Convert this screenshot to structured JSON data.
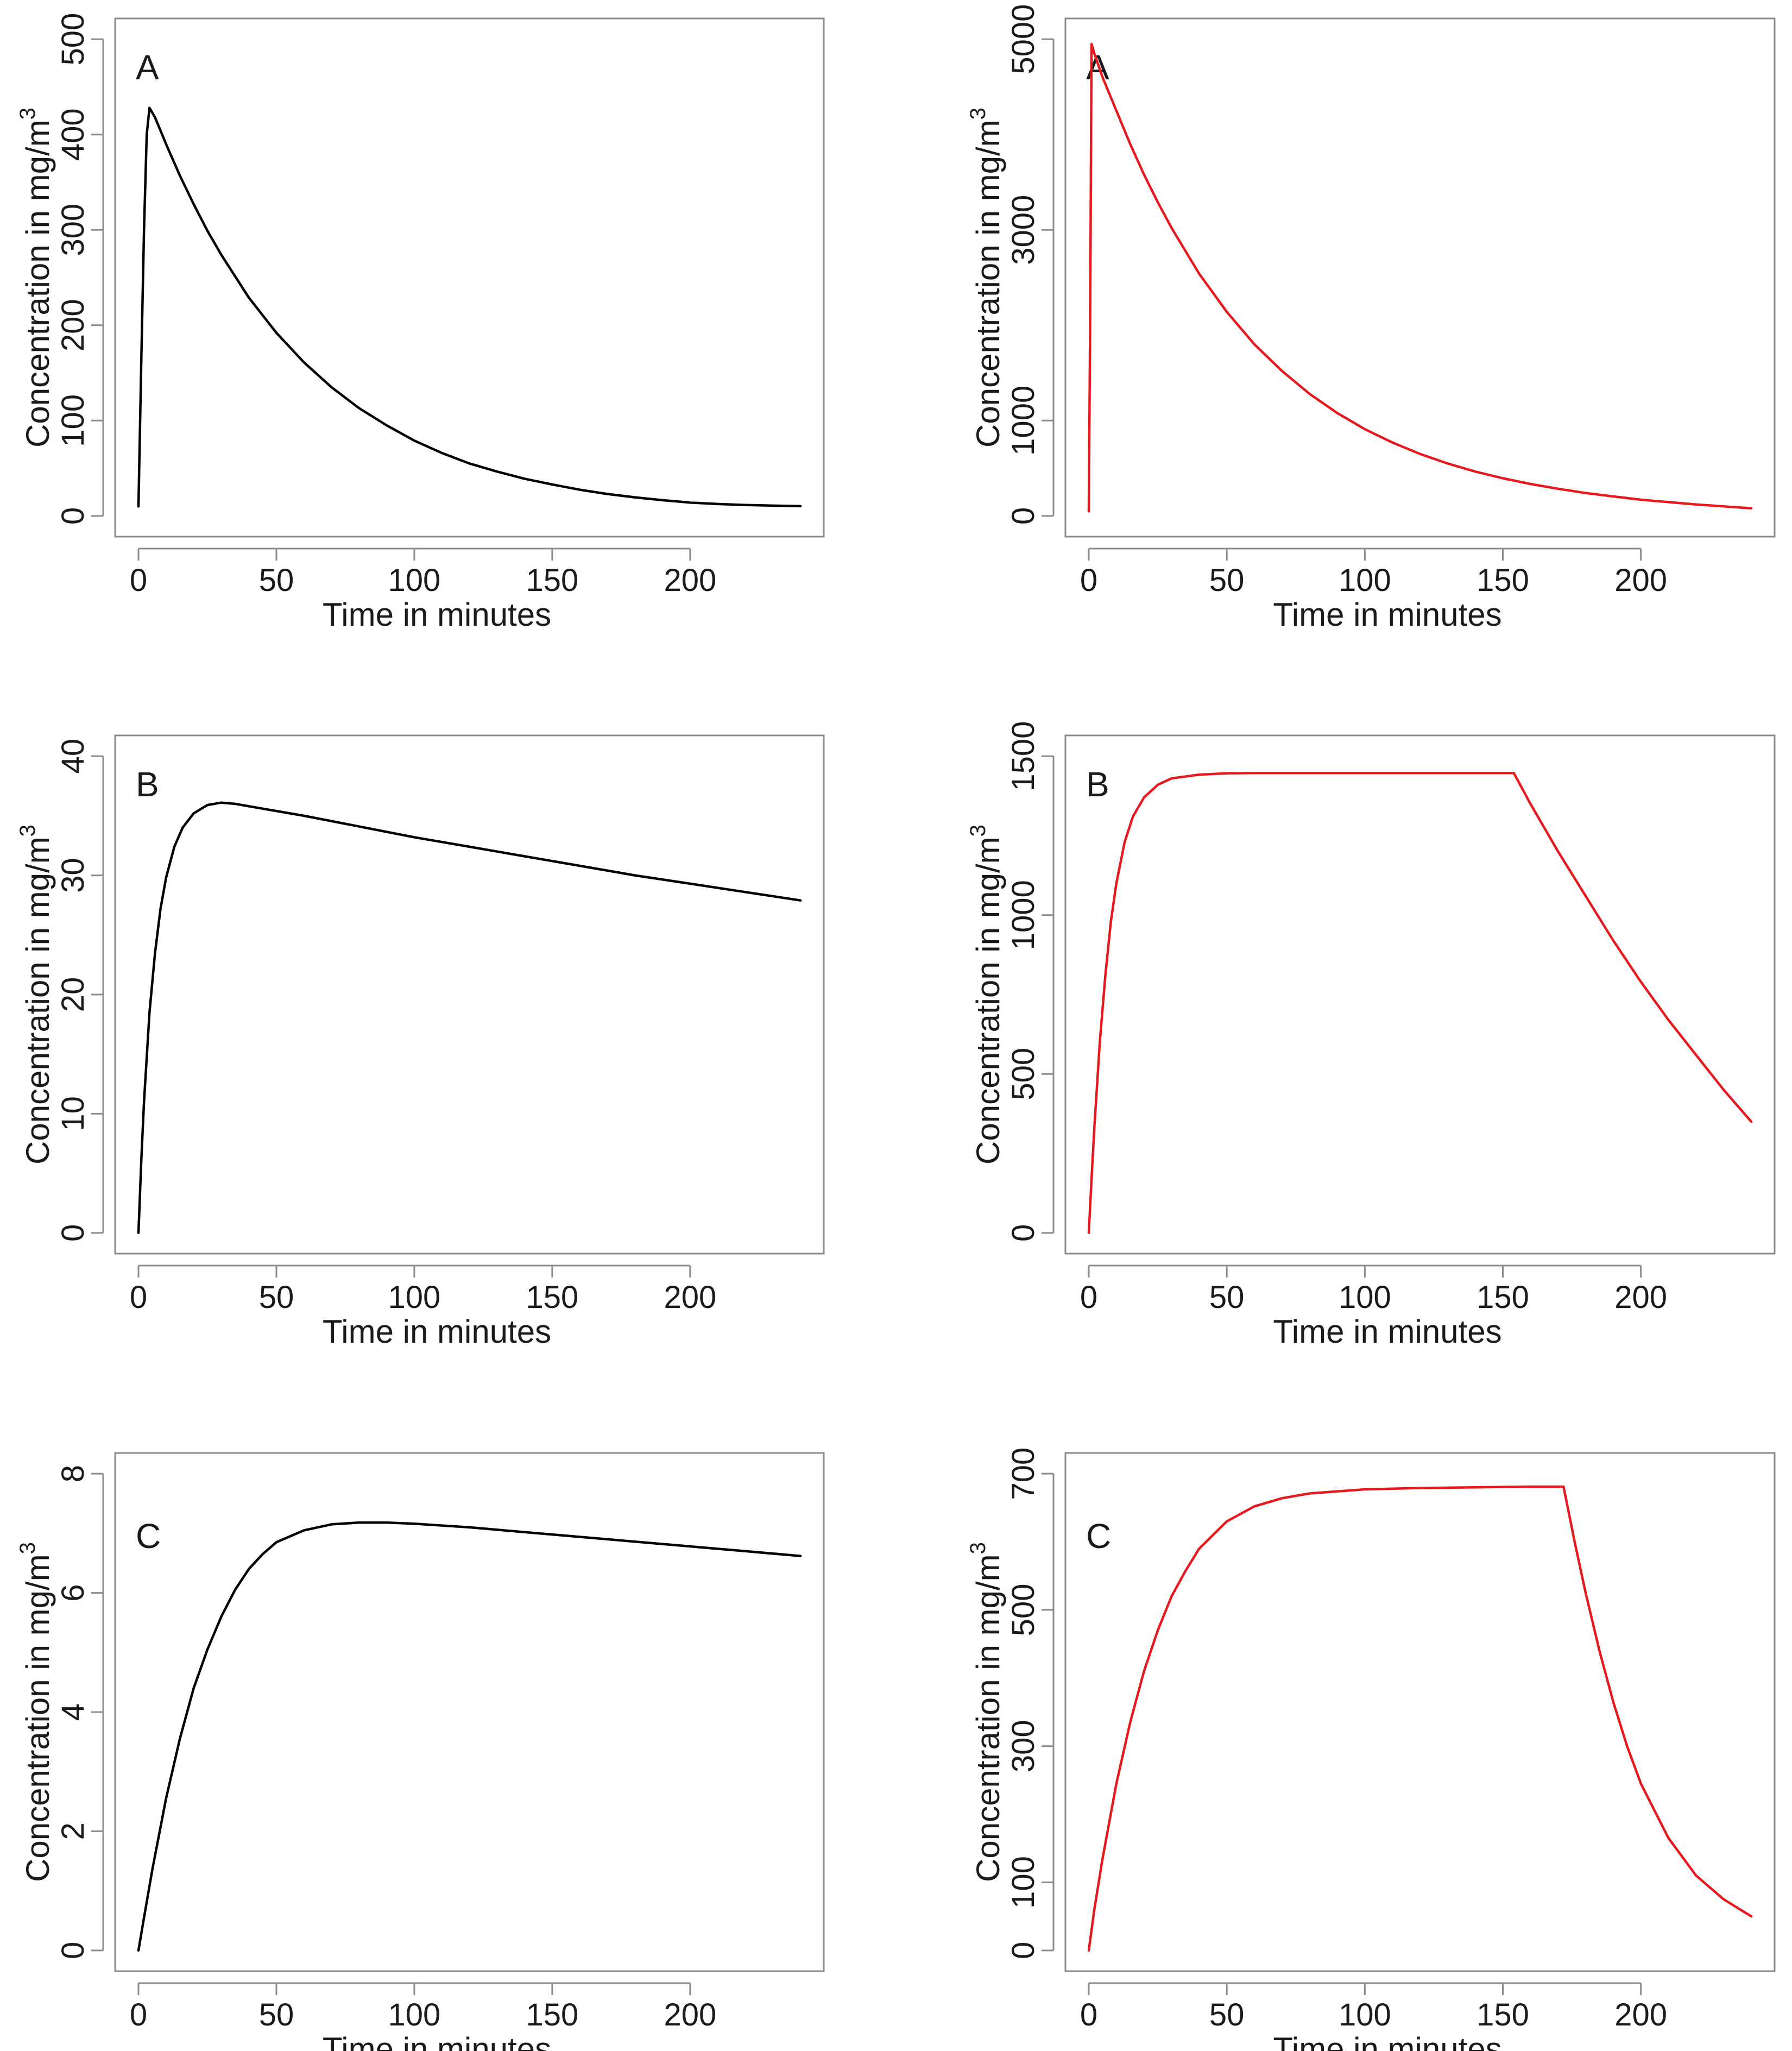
{
  "chart_data": [
    {
      "type": "line",
      "panel": "A",
      "column": "left",
      "xlabel": "Time in minutes",
      "ylabel": "Concentration in mg/m",
      "ylabel_superscript": "3",
      "xlim": [
        0,
        240
      ],
      "ylim": [
        0,
        500
      ],
      "xticks": [
        0,
        50,
        100,
        150,
        200
      ],
      "yticks": [
        0,
        100,
        200,
        300,
        400,
        500
      ],
      "color": "#000000",
      "series": [
        {
          "name": "A",
          "x": [
            0,
            1,
            2,
            3,
            4,
            6,
            10,
            15,
            20,
            25,
            30,
            40,
            50,
            60,
            70,
            80,
            90,
            100,
            110,
            120,
            130,
            140,
            150,
            160,
            170,
            180,
            190,
            200,
            210,
            220,
            230,
            240
          ],
          "y": [
            10,
            160,
            300,
            400,
            428,
            418,
            390,
            357,
            327,
            299,
            274,
            229,
            192,
            161,
            135,
            113,
            95,
            79,
            66,
            55,
            46.5,
            39,
            33,
            27.5,
            23,
            19.5,
            16.5,
            14,
            12.5,
            11.5,
            10.8,
            10.2
          ]
        }
      ]
    },
    {
      "type": "line",
      "panel": "A",
      "column": "right",
      "xlabel": "Time in minutes",
      "ylabel": "Concentration in mg/m",
      "ylabel_superscript": "3",
      "xlim": [
        0,
        240
      ],
      "ylim": [
        0,
        5000
      ],
      "xticks": [
        0,
        50,
        100,
        150,
        200
      ],
      "yticks": [
        0,
        1000,
        3000,
        5000
      ],
      "color": "#e8191e",
      "series": [
        {
          "name": "A",
          "x": [
            0,
            0.5,
            1,
            2,
            5,
            10,
            15,
            20,
            25,
            30,
            40,
            50,
            60,
            70,
            80,
            90,
            100,
            110,
            120,
            130,
            140,
            150,
            160,
            170,
            180,
            190,
            200,
            210,
            220,
            230,
            240
          ],
          "y": [
            50,
            2000,
            4950,
            4850,
            4600,
            4250,
            3900,
            3580,
            3290,
            3020,
            2540,
            2140,
            1800,
            1520,
            1280,
            1080,
            910,
            770,
            650,
            550,
            465,
            395,
            335,
            285,
            240,
            205,
            170,
            145,
            120,
            100,
            80
          ]
        }
      ]
    },
    {
      "type": "line",
      "panel": "B",
      "column": "left",
      "xlabel": "Time in minutes",
      "ylabel": "Concentration in mg/m",
      "ylabel_superscript": "3",
      "xlim": [
        0,
        240
      ],
      "ylim": [
        0,
        40
      ],
      "xticks": [
        0,
        50,
        100,
        150,
        200
      ],
      "yticks": [
        0,
        10,
        20,
        30,
        40
      ],
      "color": "#000000",
      "series": [
        {
          "name": "B",
          "x": [
            0,
            1,
            2,
            4,
            6,
            8,
            10,
            13,
            16,
            20,
            25,
            30,
            35,
            40,
            50,
            60,
            80,
            100,
            120,
            140,
            160,
            180,
            200,
            220,
            240
          ],
          "y": [
            0,
            6,
            11,
            18.5,
            23.5,
            27.2,
            29.8,
            32.4,
            34.0,
            35.2,
            35.9,
            36.1,
            36.0,
            35.8,
            35.4,
            35.0,
            34.1,
            33.2,
            32.4,
            31.6,
            30.8,
            30.0,
            29.3,
            28.6,
            27.9
          ]
        }
      ]
    },
    {
      "type": "line",
      "panel": "B",
      "column": "right",
      "xlabel": "Time in minutes",
      "ylabel": "Concentration in mg/m",
      "ylabel_superscript": "3",
      "xlim": [
        0,
        240
      ],
      "ylim": [
        0,
        1500
      ],
      "xticks": [
        0,
        50,
        100,
        150,
        200
      ],
      "yticks": [
        0,
        500,
        1000,
        1500
      ],
      "color": "#e8191e",
      "series": [
        {
          "name": "B",
          "x": [
            0,
            1,
            2,
            4,
            6,
            8,
            10,
            13,
            16,
            20,
            25,
            30,
            40,
            50,
            60,
            80,
            100,
            120,
            140,
            154,
            160,
            170,
            180,
            190,
            200,
            210,
            220,
            230,
            240
          ],
          "y": [
            0,
            170,
            330,
            600,
            810,
            980,
            1100,
            1230,
            1310,
            1370,
            1410,
            1430,
            1442,
            1446,
            1447,
            1447,
            1447,
            1447,
            1447,
            1447,
            1350,
            1200,
            1060,
            920,
            790,
            670,
            560,
            450,
            350
          ]
        }
      ]
    },
    {
      "type": "line",
      "panel": "C",
      "column": "left",
      "xlabel": "Time in minutes",
      "ylabel": "Concentration in mg/m",
      "ylabel_superscript": "3",
      "xlim": [
        0,
        240
      ],
      "ylim": [
        0,
        8
      ],
      "xticks": [
        0,
        50,
        100,
        150,
        200
      ],
      "yticks": [
        0,
        2,
        4,
        6,
        8
      ],
      "color": "#000000",
      "series": [
        {
          "name": "C",
          "x": [
            0,
            2,
            5,
            10,
            15,
            20,
            25,
            30,
            35,
            40,
            45,
            50,
            60,
            70,
            80,
            90,
            100,
            120,
            140,
            160,
            180,
            200,
            220,
            240
          ],
          "y": [
            0,
            0.55,
            1.35,
            2.55,
            3.55,
            4.4,
            5.05,
            5.6,
            6.05,
            6.4,
            6.65,
            6.85,
            7.05,
            7.15,
            7.18,
            7.18,
            7.16,
            7.1,
            7.02,
            6.94,
            6.86,
            6.78,
            6.7,
            6.62
          ]
        }
      ]
    },
    {
      "type": "line",
      "panel": "C",
      "column": "right",
      "xlabel": "Time in minutes",
      "ylabel": "Concentration in mg/m",
      "ylabel_superscript": "3",
      "xlim": [
        0,
        240
      ],
      "ylim": [
        0,
        700
      ],
      "xticks": [
        0,
        50,
        100,
        150,
        200
      ],
      "yticks": [
        0,
        100,
        300,
        500,
        700
      ],
      "color": "#e8191e",
      "series": [
        {
          "name": "C",
          "x": [
            0,
            2,
            5,
            10,
            15,
            20,
            25,
            30,
            35,
            40,
            50,
            60,
            70,
            80,
            100,
            120,
            140,
            160,
            172,
            176,
            180,
            185,
            190,
            195,
            200,
            210,
            220,
            230,
            240
          ],
          "y": [
            0,
            60,
            135,
            245,
            335,
            410,
            470,
            520,
            557,
            590,
            630,
            652,
            664,
            671,
            677,
            679,
            680,
            681,
            681,
            600,
            525,
            440,
            365,
            300,
            245,
            165,
            110,
            75,
            50
          ]
        }
      ]
    }
  ]
}
